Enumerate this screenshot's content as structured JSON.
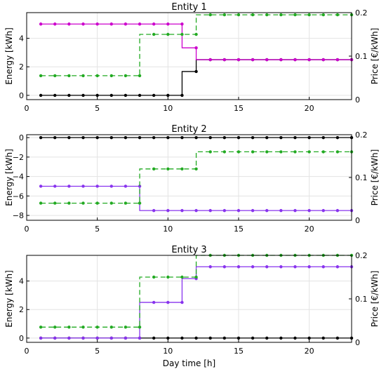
{
  "chart_data": [
    {
      "type": "line",
      "title": "Entity 1",
      "ylabel": "Energy [kWh]",
      "y2label": "Price [€/kWh]",
      "xlim": [
        0,
        23
      ],
      "ylim": [
        -0.3,
        5.8
      ],
      "y2lim": [
        0,
        0.2
      ],
      "xticks": [
        0,
        5,
        10,
        15,
        20
      ],
      "yticks": [
        0,
        2,
        4
      ],
      "y2ticks": [
        0,
        0.1,
        0.2
      ],
      "grid": true,
      "x": [
        1,
        2,
        3,
        4,
        5,
        6,
        7,
        8,
        9,
        10,
        11,
        12,
        13,
        14,
        15,
        16,
        17,
        18,
        19,
        20,
        21,
        22,
        23
      ],
      "series": [
        {
          "color": "#000000",
          "axis": "left",
          "style": "solid",
          "values": [
            0,
            0,
            0,
            0,
            0,
            0,
            0,
            0,
            0,
            0,
            0,
            1.67,
            2.5,
            2.5,
            2.5,
            2.5,
            2.5,
            2.5,
            2.5,
            2.5,
            2.5,
            2.5,
            2.5
          ]
        },
        {
          "color": "#cc00cc",
          "axis": "left",
          "style": "solid",
          "values": [
            5,
            5,
            5,
            5,
            5,
            5,
            5,
            5,
            5,
            5,
            5,
            3.33,
            2.5,
            2.5,
            2.5,
            2.5,
            2.5,
            2.5,
            2.5,
            2.5,
            2.5,
            2.5,
            2.5
          ]
        },
        {
          "color": "#22aa22",
          "axis": "right",
          "style": "dashed",
          "values": [
            0.055,
            0.055,
            0.055,
            0.055,
            0.055,
            0.055,
            0.055,
            0.055,
            0.15,
            0.15,
            0.15,
            0.15,
            0.195,
            0.195,
            0.195,
            0.195,
            0.195,
            0.195,
            0.195,
            0.195,
            0.195,
            0.195,
            0.195
          ]
        }
      ]
    },
    {
      "type": "line",
      "title": "Entity 2",
      "ylabel": "Energy [kWh]",
      "y2label": "Price [€/kWh]",
      "xlim": [
        0,
        23
      ],
      "ylim": [
        -8.5,
        0.3
      ],
      "y2lim": [
        0,
        0.2
      ],
      "xticks": [
        0,
        5,
        10,
        15,
        20
      ],
      "yticks": [
        0,
        -2,
        -4,
        -6,
        -8
      ],
      "y2ticks": [
        0,
        0.1,
        0.2
      ],
      "grid": true,
      "x": [
        1,
        2,
        3,
        4,
        5,
        6,
        7,
        8,
        9,
        10,
        11,
        12,
        13,
        14,
        15,
        16,
        17,
        18,
        19,
        20,
        21,
        22,
        23
      ],
      "series": [
        {
          "color": "#000000",
          "axis": "left",
          "style": "solid",
          "values": [
            0,
            0,
            0,
            0,
            0,
            0,
            0,
            0,
            0,
            0,
            0,
            0,
            0,
            0,
            0,
            0,
            0,
            0,
            0,
            0,
            0,
            0,
            0
          ]
        },
        {
          "color": "#8833ee",
          "axis": "left",
          "style": "solid",
          "values": [
            -5,
            -5,
            -5,
            -5,
            -5,
            -5,
            -5,
            -5,
            -7.5,
            -7.5,
            -7.5,
            -7.5,
            -7.5,
            -7.5,
            -7.5,
            -7.5,
            -7.5,
            -7.5,
            -7.5,
            -7.5,
            -7.5,
            -7.5,
            -7.5
          ]
        },
        {
          "color": "#22aa22",
          "axis": "right",
          "style": "dashed",
          "values": [
            0.04,
            0.04,
            0.04,
            0.04,
            0.04,
            0.04,
            0.04,
            0.04,
            0.12,
            0.12,
            0.12,
            0.12,
            0.16,
            0.16,
            0.16,
            0.16,
            0.16,
            0.16,
            0.16,
            0.16,
            0.16,
            0.16,
            0.16
          ]
        }
      ]
    },
    {
      "type": "line",
      "title": "Entity 3",
      "ylabel": "Energy [kWh]",
      "y2label": "Price [€/kWh]",
      "xlabel": "Day time [h]",
      "xlim": [
        0,
        23
      ],
      "ylim": [
        -0.3,
        5.8
      ],
      "y2lim": [
        0,
        0.2
      ],
      "xticks": [
        0,
        5,
        10,
        15,
        20
      ],
      "yticks": [
        0,
        2,
        4
      ],
      "y2ticks": [
        0,
        0.1,
        0.2
      ],
      "grid": true,
      "x": [
        1,
        2,
        3,
        4,
        5,
        6,
        7,
        8,
        9,
        10,
        11,
        12,
        13,
        14,
        15,
        16,
        17,
        18,
        19,
        20,
        21,
        22,
        23
      ],
      "series": [
        {
          "color": "#000000",
          "axis": "left",
          "style": "solid",
          "values": [
            0,
            0,
            0,
            0,
            0,
            0,
            0,
            0,
            0,
            0,
            0,
            0,
            0,
            0,
            0,
            0,
            0,
            0,
            0,
            0,
            0,
            0,
            0
          ]
        },
        {
          "color": "#8833ee",
          "axis": "left",
          "style": "solid",
          "values": [
            0,
            0,
            0,
            0,
            0,
            0,
            0,
            0,
            2.5,
            2.5,
            2.5,
            4.17,
            5,
            5,
            5,
            5,
            5,
            5,
            5,
            5,
            5,
            5,
            5
          ]
        },
        {
          "color": "#22aa22",
          "axis": "right",
          "style": "dashed",
          "values": [
            0.035,
            0.035,
            0.035,
            0.035,
            0.035,
            0.035,
            0.035,
            0.035,
            0.15,
            0.15,
            0.15,
            0.15,
            0.2,
            0.2,
            0.2,
            0.2,
            0.2,
            0.2,
            0.2,
            0.2,
            0.2,
            0.2,
            0.2
          ]
        }
      ]
    }
  ]
}
